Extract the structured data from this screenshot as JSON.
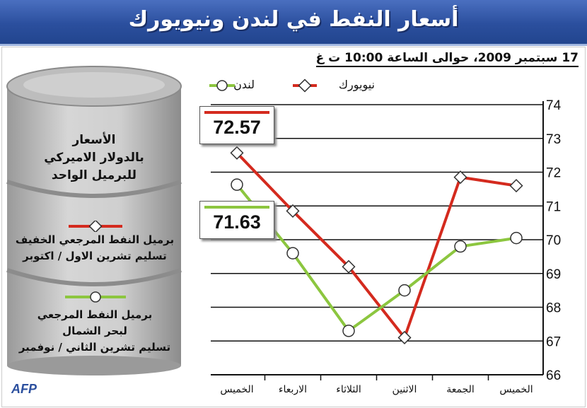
{
  "title": "أسعار النفط في لندن ونيويورك",
  "subtitle": "17 سبتمبر 2009، حوالى الساعة 10:00 ت غ",
  "legend": {
    "newyork": "نيويورك",
    "london": "لندن"
  },
  "barrel": {
    "units": [
      "الأسعار",
      "بالدولار الاميركي",
      "للبرميل الواحد"
    ],
    "light": [
      "برميل النفط المرجعي الخفيف",
      "تسليم تشرين الاول / اكتوبر"
    ],
    "brent": [
      "برميل النفط المرجعي",
      "لبحر الشمال",
      "تسليم تشرين الثاني / نوفمبر"
    ]
  },
  "callouts": {
    "newyork": "72.57",
    "london": "71.63"
  },
  "source": "AFP",
  "colors": {
    "newyork": "#d42a1e",
    "london": "#8cc63f",
    "banner": "#2b4f9e"
  },
  "chart_data": {
    "type": "line",
    "categories": [
      "الخميس",
      "الجمعة",
      "الاثنين",
      "الثلاثاء",
      "الاربعاء",
      "الخميس"
    ],
    "x_order": "right-to-left",
    "series": [
      {
        "name": "نيويورك",
        "values": [
          71.6,
          71.85,
          67.1,
          69.2,
          70.85,
          72.57
        ]
      },
      {
        "name": "لندن",
        "values": [
          70.05,
          69.8,
          68.5,
          67.3,
          69.6,
          71.63
        ]
      }
    ],
    "ylim": [
      66,
      74
    ],
    "yticks": [
      66,
      67,
      68,
      69,
      70,
      71,
      72,
      73,
      74
    ],
    "grid": true,
    "y_axis_side": "right"
  }
}
